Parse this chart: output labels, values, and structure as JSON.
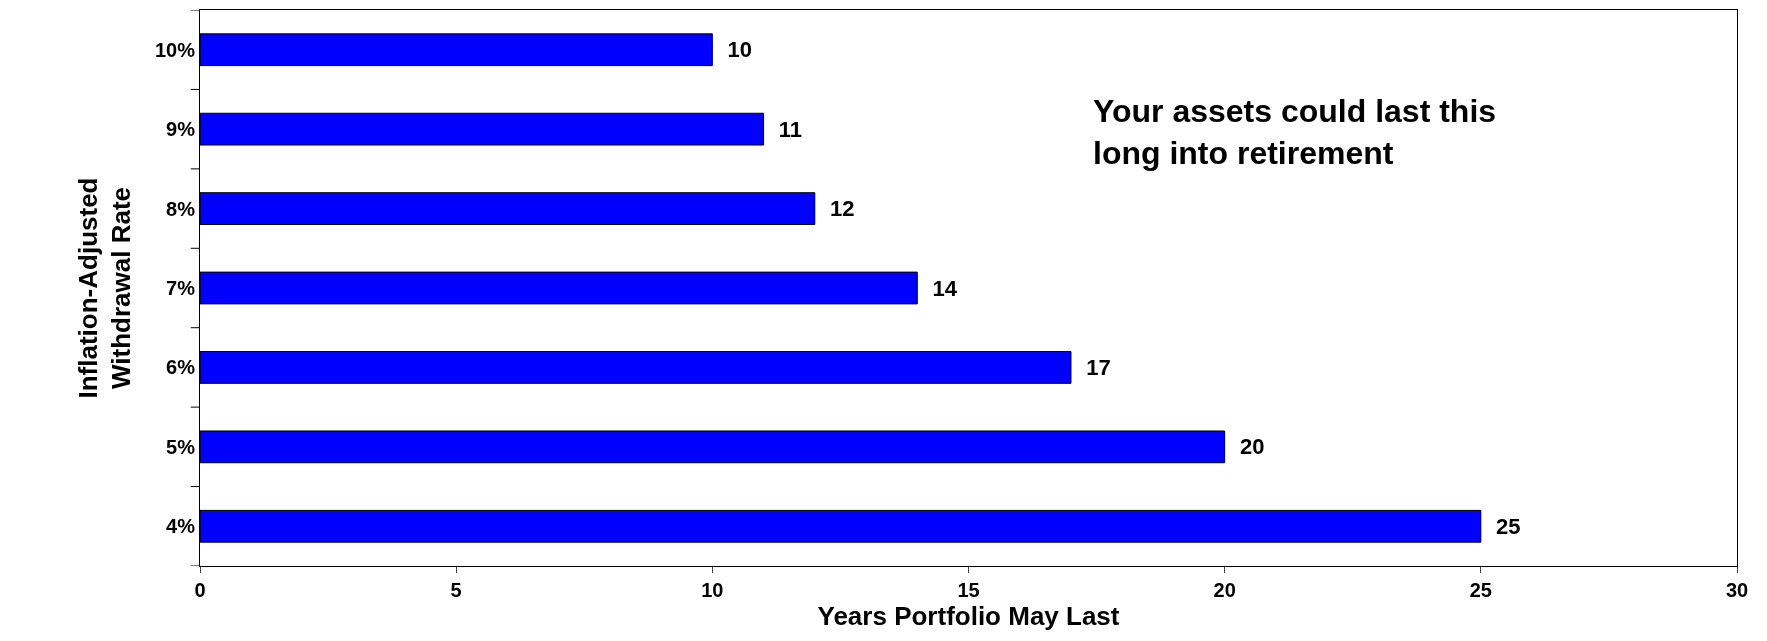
{
  "chart_data": {
    "type": "bar",
    "orientation": "horizontal",
    "categories": [
      "10%",
      "9%",
      "8%",
      "7%",
      "6%",
      "5%",
      "4%"
    ],
    "values": [
      10,
      11,
      12,
      14,
      17,
      20,
      25
    ],
    "data_labels": true,
    "color": "#0000ff",
    "xlabel": "Years Portfolio May Last",
    "ylabel": "Inflation-Adjusted\nWithdrawal Rate",
    "xlim": [
      0,
      30
    ],
    "xticks": [
      0,
      5,
      10,
      15,
      20,
      25,
      30
    ],
    "annotations": [
      "Your assets could last this\nlong into retirement"
    ],
    "legend": false
  }
}
